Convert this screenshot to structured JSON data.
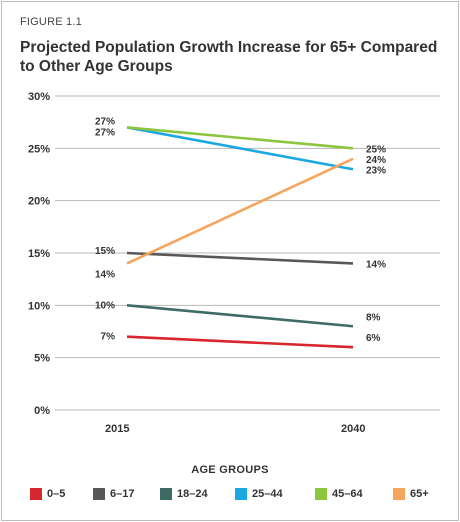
{
  "figure": {
    "label": "FIGURE 1.1",
    "title": "Projected Population Growth Increase for 65+ Compared to Other Age Groups"
  },
  "legend": {
    "title": "AGE GROUPS"
  },
  "chart_data": {
    "type": "line",
    "x": [
      "2015",
      "2040"
    ],
    "ylim": [
      0,
      30
    ],
    "yticks": [
      "0%",
      "5%",
      "10%",
      "15%",
      "20%",
      "25%",
      "30%"
    ],
    "grid": true,
    "legend_placement": "bottom",
    "series": [
      {
        "name": "0–5",
        "color": "#d7262e",
        "values": [
          7,
          6
        ],
        "labels": [
          "7%",
          "6%"
        ]
      },
      {
        "name": "6–17",
        "color": "#58585a",
        "values": [
          15,
          14
        ],
        "labels": [
          "15%",
          "14%"
        ]
      },
      {
        "name": "18–24",
        "color": "#3f6b67",
        "values": [
          10,
          8
        ],
        "labels": [
          "10%",
          "8%"
        ]
      },
      {
        "name": "25–44",
        "color": "#1ba7e0",
        "values": [
          27,
          23
        ],
        "labels": [
          "27%",
          "23%"
        ]
      },
      {
        "name": "45–64",
        "color": "#8cc63f",
        "values": [
          27,
          25
        ],
        "labels": [
          "27%",
          "25%"
        ]
      },
      {
        "name": "65+",
        "color": "#f7a45d",
        "values": [
          14,
          24
        ],
        "labels": [
          "14%",
          "24%"
        ]
      }
    ]
  }
}
